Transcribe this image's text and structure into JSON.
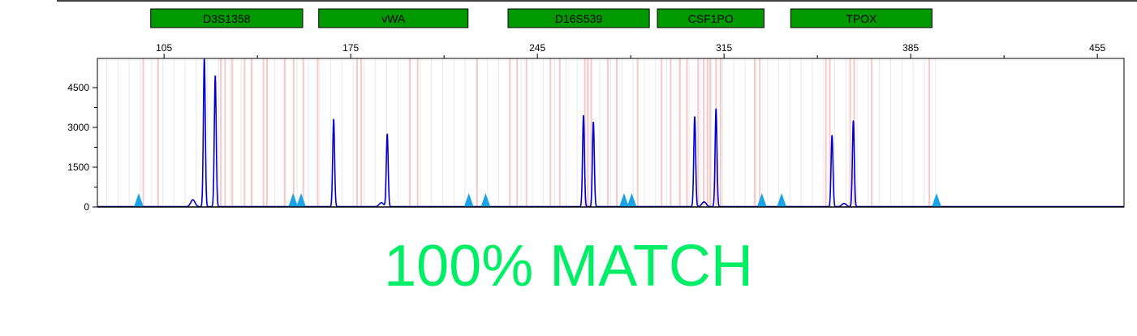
{
  "colors": {
    "trace": "#0000cc",
    "locus_fill": "#009900",
    "marker": "#1aa3e6",
    "bin_line": "#f7c8c8",
    "grid_line": "#e9e9e9",
    "match": "#00ee66"
  },
  "result_text": "100% MATCH",
  "chart_data": {
    "type": "line",
    "title": "",
    "xlabel": "",
    "ylabel": "",
    "xlim": [
      80,
      465
    ],
    "ylim": [
      0,
      5600
    ],
    "x_ticks": [
      105,
      175,
      245,
      315,
      385,
      455
    ],
    "y_ticks": [
      0,
      1500,
      3000,
      4500
    ],
    "loci": [
      {
        "name": "D3S1358",
        "start": 100,
        "end": 157
      },
      {
        "name": "vWA",
        "start": 163,
        "end": 219
      },
      {
        "name": "D16S539",
        "start": 234,
        "end": 287
      },
      {
        "name": "CSF1PO",
        "start": 290,
        "end": 330
      },
      {
        "name": "TPOX",
        "start": 340,
        "end": 393
      }
    ],
    "series": [
      {
        "peaks": [
          {
            "x": 120.1,
            "y": 5600
          },
          {
            "x": 124.2,
            "y": 4950
          },
          {
            "x": 115.8,
            "y": 260
          },
          {
            "x": 168.6,
            "y": 3300
          },
          {
            "x": 188.7,
            "y": 2750
          },
          {
            "x": 186.5,
            "y": 150
          },
          {
            "x": 262.3,
            "y": 3450
          },
          {
            "x": 266.0,
            "y": 3200
          },
          {
            "x": 304.0,
            "y": 3400
          },
          {
            "x": 312.0,
            "y": 3700
          },
          {
            "x": 307.5,
            "y": 180
          },
          {
            "x": 355.5,
            "y": 2700
          },
          {
            "x": 363.5,
            "y": 3250
          },
          {
            "x": 360.0,
            "y": 120
          }
        ]
      }
    ],
    "size_standard_markers": [
      95.5,
      153.4,
      156.4,
      219.3,
      225.6,
      277.5,
      280.4,
      329.2,
      336.6,
      394.7
    ],
    "bins": [
      97.2,
      102.8,
      126.3,
      127.9,
      130.6,
      135.2,
      137.8,
      142.3,
      143.6,
      150.2,
      153.6,
      157.2,
      162.6,
      177.4,
      178.9,
      197.2,
      200.1,
      222.4,
      234.7,
      237.4,
      240.9,
      249.9,
      253.4,
      262.8,
      263.9,
      265.2,
      271.4,
      274.8,
      282.6,
      291.6,
      295.0,
      298.5,
      301.1,
      305.3,
      307.4,
      308.8,
      309.8,
      312.0,
      313.7,
      326.5,
      328.4,
      353.2,
      354.7,
      362.3,
      363.8,
      370.4,
      392.0
    ],
    "grid_x": [
      83.5,
      87.7,
      91.9,
      96.1,
      100.3,
      104.5,
      108.7,
      112.9,
      117.1,
      121.3,
      125.5,
      129.7,
      133.9,
      138.1,
      142.3,
      146.5,
      150.7,
      154.9,
      159.1,
      163.3,
      167.5,
      171.7,
      175.9,
      180.1,
      184.3,
      188.5,
      192.7,
      196.9,
      201.1,
      205.3,
      209.5,
      213.7,
      217.9,
      222.1,
      226.3,
      230.5,
      234.7,
      238.9,
      243.1,
      247.3,
      251.5,
      255.7,
      259.9,
      264.1,
      268.3,
      272.5,
      276.7,
      280.9,
      285.1,
      289.3,
      293.5,
      297.7,
      301.9,
      306.1,
      310.3,
      314.5,
      318.7,
      322.9,
      327.1,
      331.3,
      335.5,
      339.7,
      343.9,
      348.1,
      352.3,
      356.5,
      360.7,
      364.9,
      369.1,
      373.3,
      377.5,
      381.7,
      385.9,
      390.1,
      394.3
    ]
  }
}
